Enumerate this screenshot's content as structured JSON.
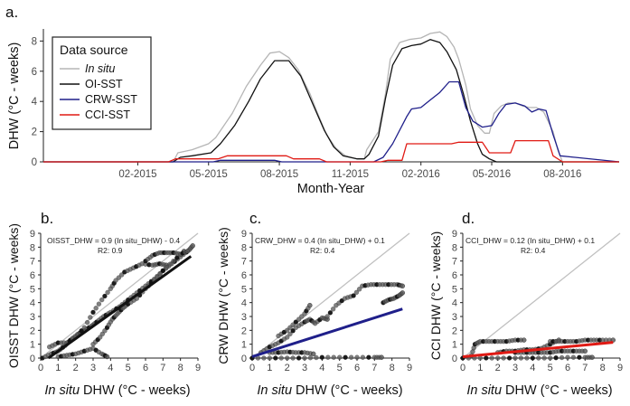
{
  "colors": {
    "insitu": "#b5b5b5",
    "oi": "#111111",
    "crw": "#1f1f8a",
    "cci": "#e01a14",
    "oneToOne": "#c0c0c0",
    "pointFill": "#555555"
  },
  "chart_data": [
    {
      "type": "line",
      "panel_label": "a.",
      "xlabel": "Month-Year",
      "ylabel": "DHW (°C - weeks)",
      "x_unit": "months since 2014-10",
      "x_ticks": [
        {
          "x": 4,
          "label": "02-2015"
        },
        {
          "x": 7,
          "label": "05-2015"
        },
        {
          "x": 10,
          "label": "08-2015"
        },
        {
          "x": 13,
          "label": "11-2015"
        },
        {
          "x": 16,
          "label": "02-2016"
        },
        {
          "x": 19,
          "label": "05-2016"
        },
        {
          "x": 22,
          "label": "08-2016"
        }
      ],
      "xlim": [
        0,
        24.4
      ],
      "ylim": [
        0,
        8.8
      ],
      "y_ticks": [
        0,
        2,
        4,
        6,
        8
      ],
      "legend": {
        "title": "Data source",
        "position": "top-left",
        "entries": [
          "In situ",
          "OI-SST",
          "CRW-SST",
          "CCI-SST"
        ]
      },
      "series": [
        {
          "name": "In situ",
          "color_key": "insitu",
          "x": [
            0,
            5.5,
            5.7,
            6.3,
            7.0,
            7.3,
            8.0,
            8.6,
            9.2,
            9.6,
            10.0,
            10.4,
            10.8,
            11.3,
            11.6,
            12.0,
            12.4,
            12.8,
            13.3,
            13.6,
            13.7,
            14.2,
            14.5,
            14.7,
            15.1,
            15.5,
            16.0,
            16.4,
            16.8,
            17.1,
            17.4,
            17.6,
            17.9,
            18.1,
            18.4,
            18.7,
            18.9,
            19.1,
            19.4,
            19.7,
            20.0,
            20.3,
            20.6,
            20.9,
            21.2,
            21.6,
            21.8,
            22.0,
            24.4
          ],
          "y": [
            0,
            0,
            0.6,
            0.8,
            1.2,
            1.6,
            3.2,
            5.0,
            6.4,
            7.2,
            7.3,
            6.9,
            6.1,
            4.5,
            3.3,
            1.8,
            0.9,
            0.4,
            0.2,
            0.2,
            0.8,
            2.0,
            4.5,
            6.8,
            7.9,
            8.1,
            8.2,
            8.5,
            8.6,
            8.3,
            7.6,
            6.8,
            5.1,
            3.5,
            2.4,
            1.9,
            1.9,
            3.2,
            3.7,
            3.9,
            3.9,
            3.7,
            3.6,
            3.6,
            3.3,
            2.0,
            0.8,
            0,
            0
          ]
        },
        {
          "name": "OI-SST",
          "color_key": "oi",
          "x": [
            0,
            5.5,
            5.8,
            6.3,
            7.1,
            7.5,
            8.1,
            8.7,
            9.2,
            9.8,
            10.4,
            10.9,
            11.4,
            11.9,
            12.3,
            12.7,
            13.3,
            13.6,
            13.8,
            14.2,
            14.5,
            14.8,
            15.2,
            15.6,
            16.0,
            16.4,
            16.8,
            17.1,
            17.5,
            17.8,
            18.1,
            18.4,
            18.6,
            18.9,
            19.2,
            24.4
          ],
          "y": [
            0,
            0,
            0.3,
            0.4,
            0.6,
            1.2,
            2.4,
            4.0,
            5.5,
            6.7,
            6.7,
            5.7,
            3.9,
            2.1,
            1.0,
            0.4,
            0.2,
            0.2,
            0.5,
            1.7,
            4.2,
            6.4,
            7.5,
            7.7,
            7.8,
            8.1,
            7.9,
            7.3,
            6.1,
            4.5,
            2.7,
            1.2,
            0.5,
            0.2,
            0,
            0
          ]
        },
        {
          "name": "CRW-SST",
          "color_key": "crw",
          "x": [
            0,
            7.2,
            7.5,
            9.8,
            10.1,
            14.0,
            14.4,
            14.8,
            15.4,
            15.6,
            16.0,
            16.4,
            16.8,
            17.2,
            17.6,
            17.9,
            18.2,
            18.6,
            19.0,
            19.3,
            19.6,
            20.0,
            20.4,
            20.7,
            21.0,
            21.3,
            21.6,
            21.9,
            24.4
          ],
          "y": [
            0,
            0,
            0.1,
            0.1,
            0,
            0,
            0.3,
            1.2,
            3.0,
            3.5,
            3.6,
            4.1,
            4.6,
            5.3,
            5.3,
            3.6,
            2.7,
            2.3,
            2.4,
            3.2,
            3.8,
            3.9,
            3.7,
            3.3,
            3.5,
            3.4,
            1.8,
            0.4,
            0
          ]
        },
        {
          "name": "CCI-SST",
          "color_key": "cci",
          "x": [
            0,
            5.3,
            5.6,
            7.4,
            7.8,
            10.3,
            10.6,
            11.7,
            12.0,
            14.3,
            14.6,
            15.2,
            15.4,
            17.3,
            17.6,
            18.6,
            18.9,
            19.8,
            20.0,
            21.4,
            21.6,
            22.0,
            24.4
          ],
          "y": [
            0,
            0,
            0.2,
            0.2,
            0.4,
            0.4,
            0.2,
            0.2,
            0,
            0,
            0.1,
            0.1,
            1.2,
            1.2,
            1.3,
            1.3,
            0.6,
            0.6,
            1.4,
            1.4,
            0.4,
            0,
            0
          ]
        }
      ]
    },
    {
      "type": "scatter",
      "panel_label": "b.",
      "equation": "OISST_DHW = 0.9 (In situ_DHW) - 0.4",
      "r2": "R2: 0.9",
      "xlabel_italic": "In situ",
      "xlabel_rest": " DHW (°C - weeks)",
      "ylabel": "OISST DHW (°C - weeks)",
      "xlim": [
        0,
        9
      ],
      "ylim": [
        0,
        9
      ],
      "ticks": [
        0,
        1,
        2,
        3,
        4,
        5,
        6,
        7,
        8,
        9
      ],
      "fit": {
        "slope": 0.9,
        "intercept": -0.4,
        "color_key": "oi",
        "x_range": [
          0.45,
          8.6
        ]
      },
      "point_paths": [
        {
          "x": [
            0.1,
            0.6,
            1.0,
            1.4,
            1.7,
            2.1,
            2.5,
            2.9,
            3.2,
            3.6,
            4.0,
            4.5,
            5.0,
            5.5,
            6.0,
            6.5,
            7.0,
            7.5,
            8.0,
            8.5,
            8.7
          ],
          "y": [
            0.0,
            0.3,
            0.5,
            0.9,
            1.3,
            1.7,
            2.0,
            2.3,
            2.6,
            3.0,
            3.3,
            3.7,
            4.2,
            4.7,
            5.2,
            5.7,
            6.3,
            6.8,
            7.3,
            7.8,
            8.1
          ]
        },
        {
          "x": [
            0.5,
            1.0,
            1.5,
            2.0,
            2.5,
            3.0,
            3.5,
            4.0,
            4.3,
            4.8,
            5.3,
            5.8,
            6.4,
            6.8,
            7.2
          ],
          "y": [
            0.8,
            1.1,
            1.1,
            1.5,
            2.2,
            3.3,
            4.2,
            5.0,
            5.6,
            6.2,
            6.5,
            6.8,
            6.7,
            6.8,
            6.7
          ]
        },
        {
          "x": [
            3.0,
            3.4,
            3.8,
            4.1,
            4.4,
            4.7,
            5.0,
            5.5,
            6.0,
            6.5,
            7.0,
            7.6,
            8.2
          ],
          "y": [
            1.0,
            1.5,
            2.2,
            2.8,
            3.2,
            3.6,
            3.9,
            4.3,
            5.0,
            5.6,
            6.3,
            7.0,
            7.7
          ]
        },
        {
          "x": [
            1.0,
            1.5,
            2.0,
            2.5,
            3.0,
            3.5,
            3.8
          ],
          "y": [
            0.1,
            0.2,
            0.3,
            0.5,
            0.7,
            0.3,
            0.1
          ]
        },
        {
          "x": [
            6.0,
            6.4,
            6.8,
            7.2,
            7.6,
            8.0,
            8.4
          ],
          "y": [
            7.0,
            7.4,
            7.6,
            7.6,
            7.6,
            7.5,
            7.7
          ]
        }
      ]
    },
    {
      "type": "scatter",
      "panel_label": "c.",
      "equation": "CRW_DHW = 0.4 (In situ_DHW) + 0.1",
      "r2": "R2: 0.4",
      "xlabel_italic": "In situ",
      "xlabel_rest": " DHW (°C - weeks)",
      "ylabel": "CRW DHW (°C - weeks)",
      "xlim": [
        0,
        9
      ],
      "ylim": [
        0,
        9
      ],
      "ticks": [
        0,
        1,
        2,
        3,
        4,
        5,
        6,
        7,
        8,
        9
      ],
      "fit": {
        "slope": 0.4,
        "intercept": 0.1,
        "color_key": "crw",
        "x_range": [
          0,
          8.6
        ]
      },
      "point_paths": [
        {
          "x": [
            0.0,
            1.0,
            2.0,
            3.0,
            4.0,
            5.0,
            6.0,
            7.0,
            7.4
          ],
          "y": [
            0.0,
            0.0,
            0.0,
            0.0,
            0.05,
            0.05,
            0.05,
            0.05,
            0.05
          ]
        },
        {
          "x": [
            0.5,
            1.0,
            1.5,
            2.0,
            2.5,
            3.0,
            3.3,
            3.6,
            4.0,
            4.3
          ],
          "y": [
            0.4,
            0.8,
            1.1,
            1.5,
            2.2,
            2.6,
            2.8,
            2.5,
            2.9,
            2.8
          ]
        },
        {
          "x": [
            1.5,
            2.0,
            2.5,
            3.0,
            3.3
          ],
          "y": [
            1.6,
            2.0,
            2.6,
            3.2,
            3.8
          ]
        },
        {
          "x": [
            4.3,
            4.8,
            5.3,
            5.8,
            6.3,
            6.8,
            7.3,
            7.8,
            8.3,
            8.6
          ],
          "y": [
            3.0,
            3.8,
            4.3,
            4.5,
            5.2,
            5.3,
            5.3,
            5.3,
            5.3,
            5.2
          ]
        },
        {
          "x": [
            7.5,
            7.8,
            8.1,
            8.4,
            8.6
          ],
          "y": [
            4.0,
            4.2,
            4.3,
            4.5,
            4.7
          ]
        },
        {
          "x": [
            1.0,
            1.5,
            2.0,
            2.5,
            3.0,
            3.5
          ],
          "y": [
            0.4,
            0.4,
            0.45,
            0.4,
            0.4,
            0.3
          ]
        }
      ]
    },
    {
      "type": "scatter",
      "panel_label": "d.",
      "equation": "CCI_DHW = 0.12 (In situ_DHW) + 0.1",
      "r2": "R2: 0.4",
      "xlabel_italic": "In situ",
      "xlabel_rest": " DHW (°C - weeks)",
      "ylabel": "CCI DHW (°C - weeks)",
      "xlim": [
        0,
        9
      ],
      "ylim": [
        0,
        9
      ],
      "ticks": [
        0,
        1,
        2,
        3,
        4,
        5,
        6,
        7,
        8,
        9
      ],
      "fit": {
        "slope": 0.12,
        "intercept": 0.1,
        "color_key": "cci",
        "x_range": [
          0,
          8.6
        ]
      },
      "point_paths": [
        {
          "x": [
            0.0,
            1.0,
            2.0,
            3.0,
            4.0,
            5.0,
            6.0,
            7.0,
            7.4
          ],
          "y": [
            0.0,
            0.0,
            0.0,
            0.0,
            0.0,
            0.0,
            0.05,
            0.05,
            0.05
          ]
        },
        {
          "x": [
            0.5,
            0.7,
            1.0,
            1.5,
            2.0,
            2.5,
            3.0,
            3.5
          ],
          "y": [
            0.2,
            1.0,
            1.2,
            1.2,
            1.2,
            1.2,
            1.3,
            1.3
          ]
        },
        {
          "x": [
            2.0,
            2.5,
            3.0,
            3.5,
            4.0,
            4.5,
            5.0,
            5.5
          ],
          "y": [
            0.4,
            0.5,
            0.5,
            0.6,
            0.6,
            0.7,
            1.0,
            1.3
          ]
        },
        {
          "x": [
            5.0,
            5.5,
            6.0,
            6.5,
            7.0,
            7.5,
            8.0,
            8.6
          ],
          "y": [
            1.2,
            1.2,
            1.2,
            1.2,
            1.3,
            1.3,
            1.3,
            1.3
          ]
        },
        {
          "x": [
            3.0,
            3.5,
            4.0,
            4.5,
            5.0,
            5.5,
            6.0,
            6.5,
            7.0
          ],
          "y": [
            0.4,
            0.4,
            0.4,
            0.4,
            0.4,
            0.5,
            0.5,
            0.5,
            0.5
          ]
        }
      ]
    }
  ]
}
